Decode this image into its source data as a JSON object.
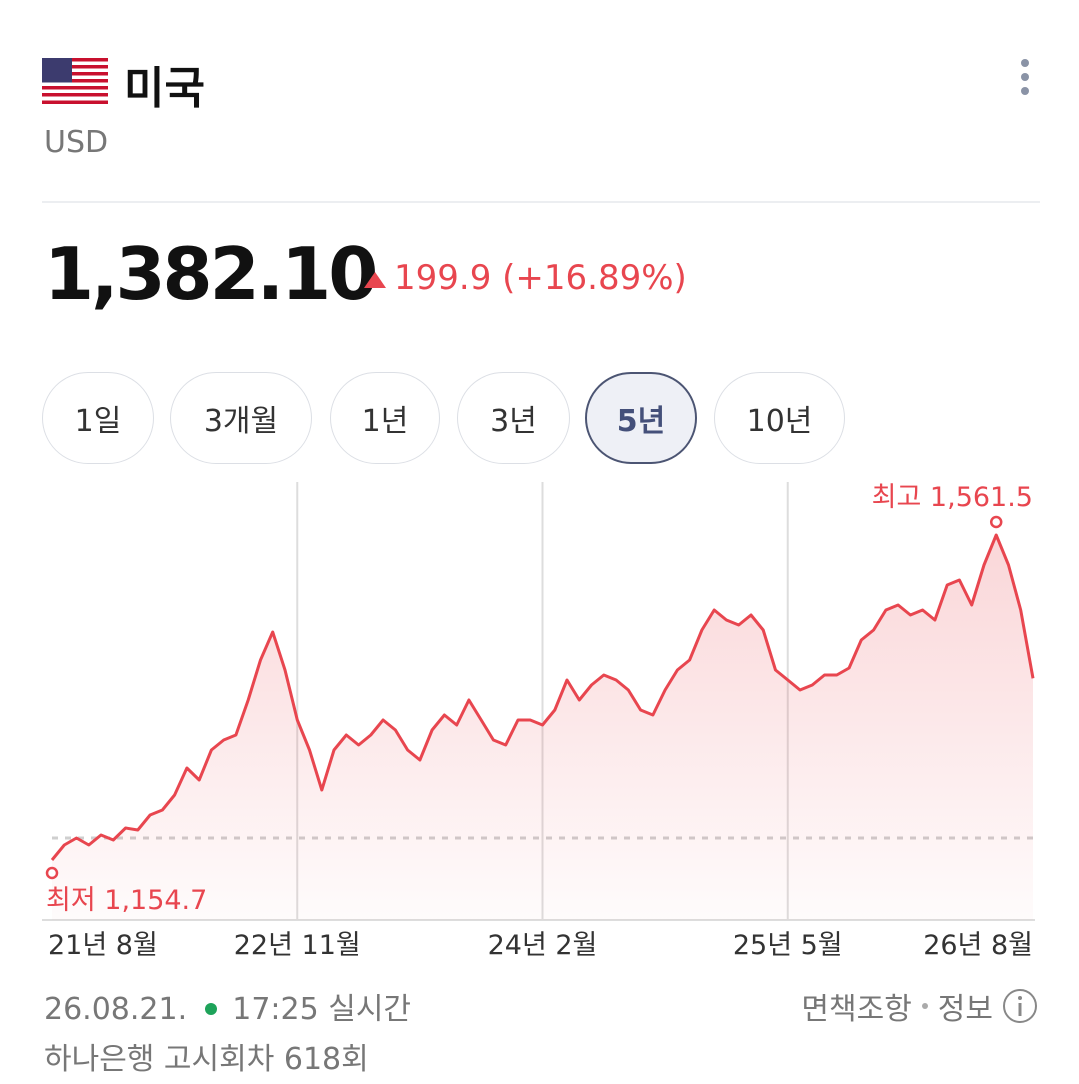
{
  "header": {
    "country": "미국",
    "currency": "USD"
  },
  "price": {
    "value": "1,382.10",
    "change": "199.9",
    "change_pct": "(+16.89%)"
  },
  "tabs": [
    "1일",
    "3개월",
    "1년",
    "3년",
    "5년",
    "10년"
  ],
  "selected_tab": 4,
  "chart_data": {
    "type": "line",
    "color": "#e8464f",
    "baseline": 1182.2,
    "categories": [
      "21년 8월",
      null,
      null,
      null,
      null,
      null,
      null,
      null,
      null,
      null,
      null,
      null,
      null,
      null,
      null,
      null,
      null,
      null,
      null,
      null,
      "22년 11월",
      null,
      null,
      null,
      null,
      null,
      null,
      null,
      null,
      null,
      null,
      null,
      null,
      null,
      null,
      null,
      null,
      null,
      null,
      null,
      "24년 2월",
      null,
      null,
      null,
      null,
      null,
      null,
      null,
      null,
      null,
      null,
      null,
      null,
      null,
      null,
      null,
      null,
      null,
      null,
      null,
      "25년 5월",
      null,
      null,
      null,
      null,
      null,
      null,
      null,
      null,
      null,
      null,
      null,
      null,
      null,
      null,
      null,
      null,
      null,
      null,
      null,
      "26년 8월"
    ],
    "values": [
      1154.7,
      1173.5,
      1182.2,
      1173.5,
      1186.0,
      1179.7,
      1194.8,
      1192.3,
      1211.0,
      1217.3,
      1236.1,
      1269.9,
      1254.8,
      1292.4,
      1304.9,
      1311.2,
      1355.0,
      1405.0,
      1440.1,
      1392.5,
      1329.9,
      1292.4,
      1242.3,
      1292.4,
      1311.2,
      1298.6,
      1311.2,
      1329.9,
      1317.4,
      1292.4,
      1279.9,
      1317.4,
      1336.2,
      1323.7,
      1355.0,
      1329.9,
      1304.9,
      1298.6,
      1329.9,
      1329.9,
      1323.7,
      1342.5,
      1380.0,
      1355.0,
      1373.7,
      1386.3,
      1380.0,
      1367.5,
      1342.5,
      1336.2,
      1367.5,
      1392.5,
      1405.0,
      1442.6,
      1467.6,
      1455.1,
      1448.8,
      1461.4,
      1442.6,
      1392.5,
      1380.0,
      1367.5,
      1373.7,
      1386.3,
      1386.3,
      1395.0,
      1430.1,
      1442.6,
      1467.6,
      1473.9,
      1461.4,
      1467.6,
      1455.1,
      1498.9,
      1505.2,
      1473.9,
      1523.9,
      1561.5,
      1523.9,
      1467.6,
      1382.1
    ],
    "annotations": [
      {
        "text": "최저 1,154.7",
        "value": 1154.7
      },
      {
        "text": "최고 1,561.5",
        "value": 1561.5
      }
    ]
  },
  "footer": {
    "date": "26.08.21.",
    "time": "17:25 실시간",
    "disclaimer": "면책조항",
    "info": "정보",
    "notice": "하나은행 고시회차 618회"
  }
}
